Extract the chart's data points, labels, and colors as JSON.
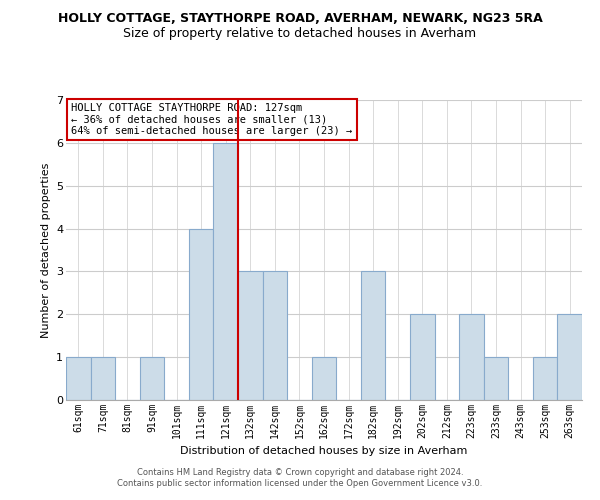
{
  "title": "HOLLY COTTAGE, STAYTHORPE ROAD, AVERHAM, NEWARK, NG23 5RA",
  "subtitle": "Size of property relative to detached houses in Averham",
  "xlabel": "Distribution of detached houses by size in Averham",
  "ylabel": "Number of detached properties",
  "bar_labels": [
    "61sqm",
    "71sqm",
    "81sqm",
    "91sqm",
    "101sqm",
    "111sqm",
    "121sqm",
    "132sqm",
    "142sqm",
    "152sqm",
    "162sqm",
    "172sqm",
    "182sqm",
    "192sqm",
    "202sqm",
    "212sqm",
    "223sqm",
    "233sqm",
    "243sqm",
    "253sqm",
    "263sqm"
  ],
  "bar_values": [
    1,
    1,
    0,
    1,
    0,
    4,
    6,
    3,
    3,
    0,
    1,
    0,
    3,
    0,
    2,
    0,
    2,
    1,
    0,
    1,
    2
  ],
  "bar_color": "#ccdce8",
  "bar_edge_color": "#88aacc",
  "highlight_line_index": 6.5,
  "highlight_color": "#cc0000",
  "annotation_title": "HOLLY COTTAGE STAYTHORPE ROAD: 127sqm",
  "annotation_line1": "← 36% of detached houses are smaller (13)",
  "annotation_line2": "64% of semi-detached houses are larger (23) →",
  "annotation_box_color": "#ffffff",
  "annotation_box_edge": "#cc0000",
  "ylim": [
    0,
    7
  ],
  "yticks": [
    0,
    1,
    2,
    3,
    4,
    5,
    6,
    7
  ],
  "footer_line1": "Contains HM Land Registry data © Crown copyright and database right 2024.",
  "footer_line2": "Contains public sector information licensed under the Open Government Licence v3.0.",
  "bg_color": "#ffffff",
  "grid_color": "#cccccc",
  "title_fontsize": 9,
  "subtitle_fontsize": 9,
  "axis_label_fontsize": 8,
  "tick_fontsize": 7,
  "annotation_fontsize": 7.5,
  "footer_fontsize": 6
}
